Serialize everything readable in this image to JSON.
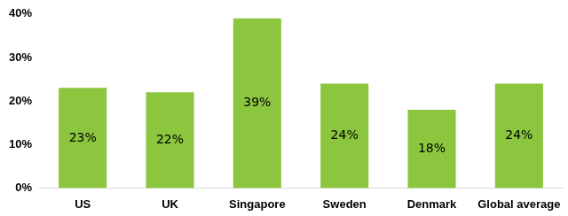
{
  "chart_data": {
    "type": "bar",
    "categories": [
      "US",
      "UK",
      "Singapore",
      "Sweden",
      "Denmark",
      "Global average"
    ],
    "values": [
      23,
      22,
      39,
      24,
      18,
      24
    ],
    "value_labels": [
      "23%",
      "22%",
      "39%",
      "24%",
      "18%",
      "24%"
    ],
    "color": "#8cc63f",
    "ylim": [
      0,
      40
    ],
    "yticks": [
      {
        "value": 0,
        "label": "0%"
      },
      {
        "value": 10,
        "label": "10%"
      },
      {
        "value": 20,
        "label": "20%"
      },
      {
        "value": 30,
        "label": "30%"
      },
      {
        "value": 40,
        "label": "40%"
      }
    ],
    "grid": false,
    "data_labels": true
  }
}
